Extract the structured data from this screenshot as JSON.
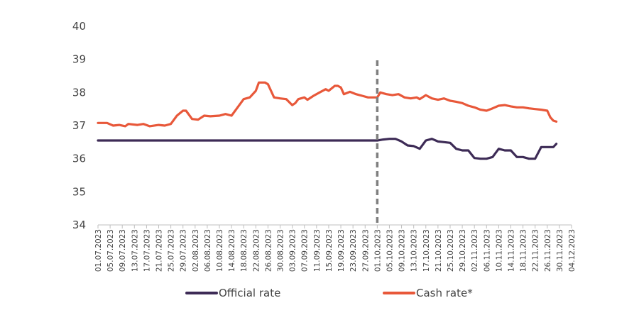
{
  "chart_data": {
    "type": "line",
    "title": "",
    "xlabel": "",
    "ylabel": "",
    "ylim": [
      34,
      40
    ],
    "yticks": [
      34,
      35,
      36,
      37,
      38,
      39,
      40
    ],
    "grid": false,
    "legend_position": "bottom",
    "x_tick_labels": [
      "01.07.2023",
      "05.07.2023",
      "09.07.2023",
      "13.07.2023",
      "17.07.2023",
      "21.07.2023",
      "25.07.2023",
      "29.07.2023",
      "02.08.2023",
      "06.08.2023",
      "10.08.2023",
      "14.08.2023",
      "18.08.2023",
      "22.08.2023",
      "26.08.2023",
      "30.08.2023",
      "03.09.2023",
      "07.09.2023",
      "11.09.2023",
      "15.09.2023",
      "19.09.2023",
      "23.09.2023",
      "27.09.2023",
      "01.10.2023",
      "05.10.2023",
      "09.10.2023",
      "13.10.2023",
      "17.10.2023",
      "21.10.2023",
      "25.10.2023",
      "29.10.2023",
      "02.11.2023",
      "06.11.2023",
      "10.11.2023",
      "14.11.2023",
      "18.11.2023",
      "22.11.2023",
      "26.11.2023",
      "30.11.2023",
      "04.12.2023"
    ],
    "x_range_days": [
      0,
      156
    ],
    "marker_day": 92,
    "series": [
      {
        "name": "Official rate",
        "color": "#3d2b56",
        "points": [
          [
            0,
            36.55
          ],
          [
            92,
            36.55
          ],
          [
            94,
            36.58
          ],
          [
            96,
            36.6
          ],
          [
            98,
            36.6
          ],
          [
            100,
            36.52
          ],
          [
            102,
            36.4
          ],
          [
            104,
            36.38
          ],
          [
            106,
            36.3
          ],
          [
            108,
            36.55
          ],
          [
            110,
            36.6
          ],
          [
            112,
            36.52
          ],
          [
            114,
            36.5
          ],
          [
            116,
            36.48
          ],
          [
            118,
            36.3
          ],
          [
            120,
            36.25
          ],
          [
            122,
            36.25
          ],
          [
            124,
            36.02
          ],
          [
            126,
            36.0
          ],
          [
            128,
            36.0
          ],
          [
            130,
            36.05
          ],
          [
            132,
            36.3
          ],
          [
            134,
            36.25
          ],
          [
            136,
            36.25
          ],
          [
            138,
            36.05
          ],
          [
            140,
            36.05
          ],
          [
            142,
            36.0
          ],
          [
            144,
            36.0
          ],
          [
            146,
            36.35
          ],
          [
            148,
            36.35
          ],
          [
            150,
            36.35
          ],
          [
            151,
            36.45
          ]
        ]
      },
      {
        "name": "Cash rate*",
        "color": "#e8583a",
        "points": [
          [
            0,
            37.08
          ],
          [
            3,
            37.08
          ],
          [
            5,
            37.0
          ],
          [
            7,
            37.02
          ],
          [
            9,
            36.98
          ],
          [
            10,
            37.05
          ],
          [
            13,
            37.02
          ],
          [
            15,
            37.05
          ],
          [
            17,
            36.98
          ],
          [
            20,
            37.02
          ],
          [
            22,
            37.0
          ],
          [
            24,
            37.05
          ],
          [
            26,
            37.3
          ],
          [
            28,
            37.45
          ],
          [
            29,
            37.45
          ],
          [
            31,
            37.2
          ],
          [
            33,
            37.18
          ],
          [
            35,
            37.3
          ],
          [
            37,
            37.28
          ],
          [
            40,
            37.3
          ],
          [
            42,
            37.35
          ],
          [
            44,
            37.3
          ],
          [
            46,
            37.55
          ],
          [
            48,
            37.8
          ],
          [
            50,
            37.85
          ],
          [
            52,
            38.05
          ],
          [
            53,
            38.3
          ],
          [
            55,
            38.3
          ],
          [
            56,
            38.25
          ],
          [
            58,
            37.85
          ],
          [
            60,
            37.82
          ],
          [
            62,
            37.8
          ],
          [
            64,
            37.62
          ],
          [
            65,
            37.68
          ],
          [
            66,
            37.8
          ],
          [
            68,
            37.85
          ],
          [
            69,
            37.78
          ],
          [
            71,
            37.9
          ],
          [
            73,
            38.0
          ],
          [
            75,
            38.1
          ],
          [
            76,
            38.05
          ],
          [
            78,
            38.2
          ],
          [
            79,
            38.2
          ],
          [
            80,
            38.15
          ],
          [
            81,
            37.95
          ],
          [
            83,
            38.02
          ],
          [
            85,
            37.95
          ],
          [
            87,
            37.9
          ],
          [
            89,
            37.85
          ],
          [
            92,
            37.85
          ],
          [
            93,
            38.0
          ],
          [
            95,
            37.95
          ],
          [
            97,
            37.92
          ],
          [
            99,
            37.95
          ],
          [
            101,
            37.85
          ],
          [
            103,
            37.82
          ],
          [
            105,
            37.85
          ],
          [
            106,
            37.8
          ],
          [
            108,
            37.92
          ],
          [
            110,
            37.82
          ],
          [
            112,
            37.78
          ],
          [
            114,
            37.82
          ],
          [
            116,
            37.75
          ],
          [
            118,
            37.72
          ],
          [
            120,
            37.68
          ],
          [
            122,
            37.6
          ],
          [
            124,
            37.55
          ],
          [
            126,
            37.48
          ],
          [
            128,
            37.45
          ],
          [
            130,
            37.52
          ],
          [
            132,
            37.6
          ],
          [
            134,
            37.62
          ],
          [
            136,
            37.58
          ],
          [
            138,
            37.55
          ],
          [
            140,
            37.55
          ],
          [
            142,
            37.52
          ],
          [
            144,
            37.5
          ],
          [
            146,
            37.48
          ],
          [
            148,
            37.45
          ],
          [
            149,
            37.25
          ],
          [
            150,
            37.15
          ],
          [
            151,
            37.12
          ]
        ]
      }
    ]
  }
}
